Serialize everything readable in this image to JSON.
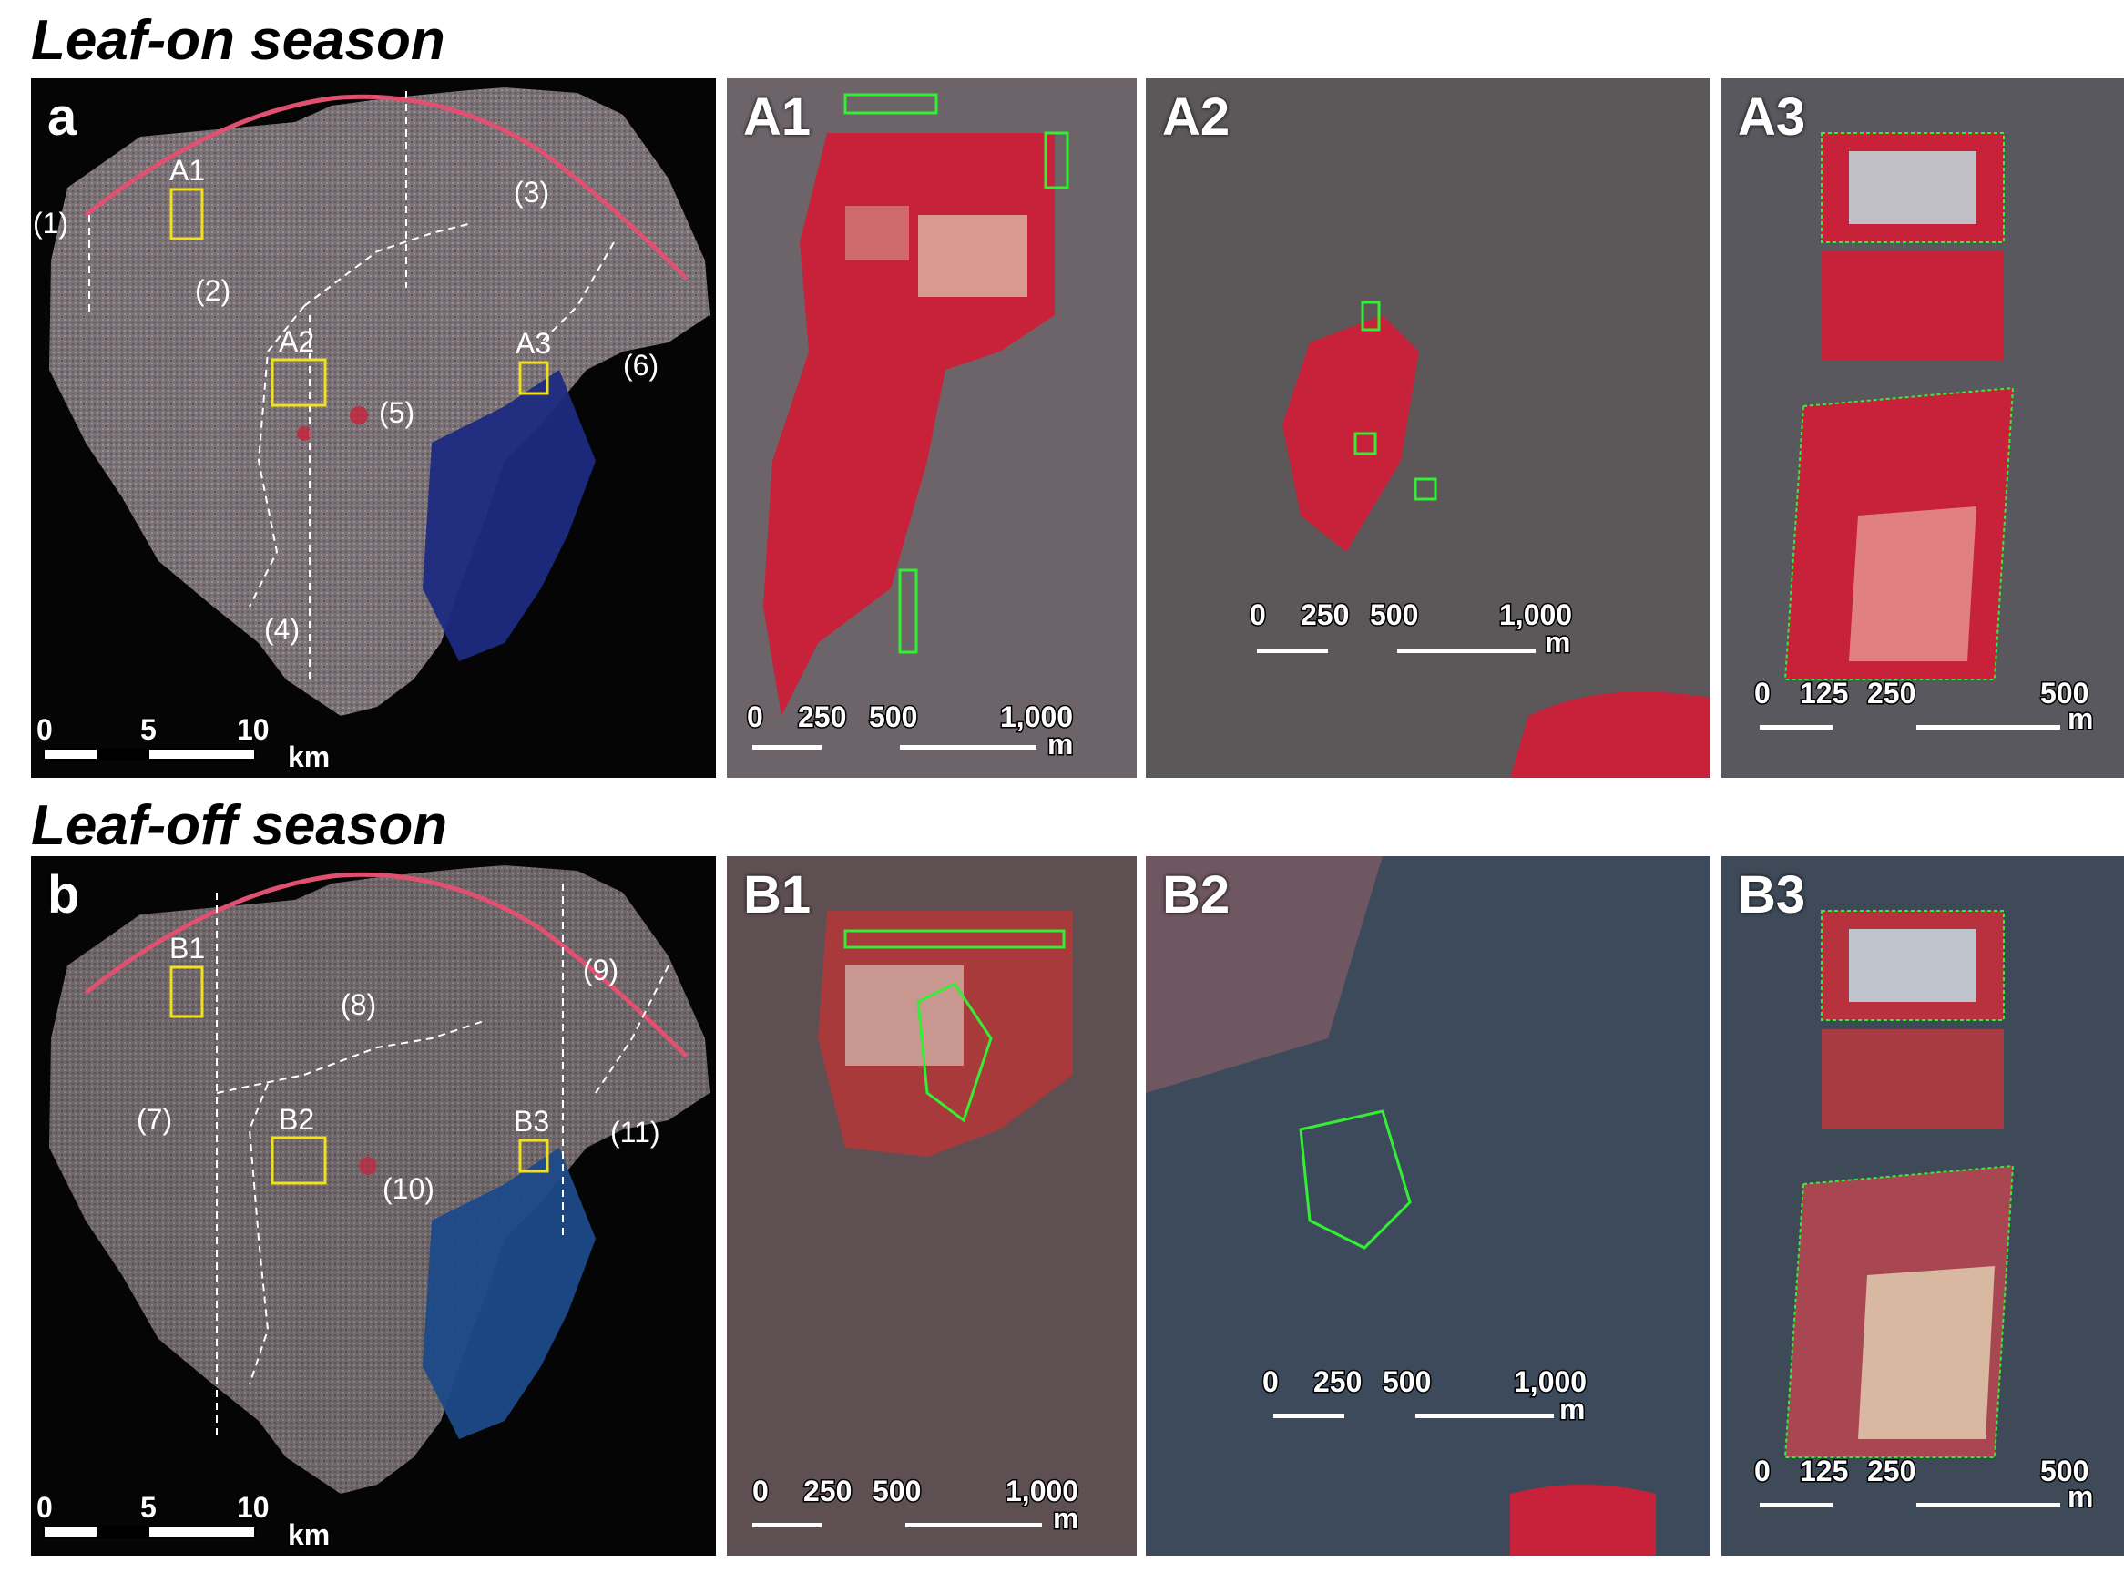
{
  "titles": {
    "leaf_on": "Leaf-on season",
    "leaf_off": "Leaf-off season"
  },
  "panels": {
    "a": "a",
    "b": "b",
    "A1": "A1",
    "A2": "A2",
    "A3": "A3",
    "B1": "B1",
    "B2": "B2",
    "B3": "B3"
  },
  "map_a": {
    "box_labels": [
      "A1",
      "A2",
      "A3"
    ],
    "regions": [
      "(1)",
      "(2)",
      "(3)",
      "(4)",
      "(5)",
      "(6)"
    ],
    "scale": {
      "t0": "0",
      "t1": "5",
      "t2": "10",
      "unit": "km"
    }
  },
  "map_b": {
    "box_labels": [
      "B1",
      "B2",
      "B3"
    ],
    "regions": [
      "(7)",
      "(8)",
      "(9)",
      "(10)",
      "(11)"
    ],
    "scale": {
      "t0": "0",
      "t1": "5",
      "t2": "10",
      "unit": "km"
    }
  },
  "scale_A1": {
    "t0": "0",
    "t1": "250",
    "t2": "500",
    "t3": "1,000",
    "unit": "m"
  },
  "scale_A2": {
    "t0": "0",
    "t1": "250",
    "t2": "500",
    "t3": "1,000",
    "unit": "m"
  },
  "scale_A3": {
    "t0": "0",
    "t1": "125",
    "t2": "250",
    "t3": "500",
    "unit": "m"
  },
  "scale_B1": {
    "t0": "0",
    "t1": "250",
    "t2": "500",
    "t3": "1,000",
    "unit": "m"
  },
  "scale_B2": {
    "t0": "0",
    "t1": "250",
    "t2": "500",
    "t3": "1,000",
    "unit": "m"
  },
  "scale_B3": {
    "t0": "0",
    "t1": "125",
    "t2": "250",
    "t3": "500",
    "unit": "m"
  },
  "colors": {
    "vegetation": "#c8223a",
    "urban": "#7c7478",
    "water": "#1e2a80",
    "highlight_box": "#f0e020",
    "tree_outline": "#33ee33",
    "boundary": "#ffffff"
  }
}
